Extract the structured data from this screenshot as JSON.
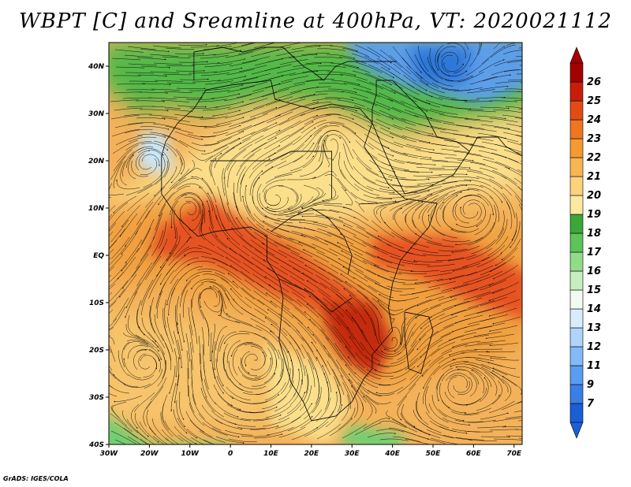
{
  "title": "WBPT [C] and Sreamline at 400hPa, VT: 2020021112",
  "credit": "GrADS: IGES/COLA",
  "map": {
    "lon_range": [
      -30,
      72
    ],
    "lat_range": [
      -40,
      45
    ],
    "lon_ticks": [
      {
        "lon": -30,
        "label": "30W"
      },
      {
        "lon": -20,
        "label": "20W"
      },
      {
        "lon": -10,
        "label": "10W"
      },
      {
        "lon": 0,
        "label": "0"
      },
      {
        "lon": 10,
        "label": "10E"
      },
      {
        "lon": 20,
        "label": "20E"
      },
      {
        "lon": 30,
        "label": "30E"
      },
      {
        "lon": 40,
        "label": "40E"
      },
      {
        "lon": 50,
        "label": "50E"
      },
      {
        "lon": 60,
        "label": "60E"
      },
      {
        "lon": 70,
        "label": "70E"
      }
    ],
    "lat_ticks": [
      {
        "lat": 40,
        "label": "40N"
      },
      {
        "lat": 30,
        "label": "30N"
      },
      {
        "lat": 20,
        "label": "20N"
      },
      {
        "lat": 10,
        "label": "10N"
      },
      {
        "lat": 0,
        "label": "EQ"
      },
      {
        "lat": -10,
        "label": "10S"
      },
      {
        "lat": -20,
        "label": "20S"
      },
      {
        "lat": -30,
        "label": "30S"
      },
      {
        "lat": -40,
        "label": "40S"
      }
    ]
  },
  "colorbar": {
    "levels": [
      "7",
      "9",
      "11",
      "12",
      "13",
      "14",
      "15",
      "16",
      "17",
      "18",
      "19",
      "20",
      "21",
      "22",
      "23",
      "24",
      "25",
      "26"
    ],
    "colors": [
      "#1a5fd6",
      "#3a7fe6",
      "#5a9cf2",
      "#84baf8",
      "#aed4fb",
      "#d8ecfc",
      "#f2fbf2",
      "#c8eec0",
      "#92dc88",
      "#5cc458",
      "#3aa838",
      "#fbe9a0",
      "#fcd27c",
      "#f8b650",
      "#f49a30",
      "#ee7620",
      "#e04c14",
      "#c81e08",
      "#a40000"
    ]
  },
  "wbpt_regions": [
    {
      "name": "north-green-band",
      "value": 17,
      "color": "#52b94a"
    },
    {
      "name": "north-east-cold-pool",
      "value": 13,
      "color": "#5d9ee8"
    },
    {
      "name": "north-west-cold-core",
      "value": 15,
      "color": "#c9e6f6"
    },
    {
      "name": "subtropical-yellow-belt",
      "value": 20,
      "color": "#fbdf8a"
    },
    {
      "name": "tropical-orange-belt",
      "value": 22,
      "color": "#f0a040"
    },
    {
      "name": "equatorial-red-core",
      "value": 24,
      "color": "#e65220"
    },
    {
      "name": "south-east-africa-max",
      "value": 25,
      "color": "#c42c10"
    },
    {
      "name": "southern-ocean-green",
      "value": 17,
      "color": "#6fcf72"
    }
  ],
  "streamline_centers": [
    {
      "name": "sw-atlantic-gyre",
      "lon": -20,
      "lat": -23
    },
    {
      "name": "south-atlantic-gyre-2",
      "lon": 6,
      "lat": -22
    },
    {
      "name": "mozambique-gyre",
      "lon": 40,
      "lat": -19
    },
    {
      "name": "madagascar-gyre",
      "lon": 56,
      "lat": -27
    },
    {
      "name": "sahara-gyre",
      "lon": 10,
      "lat": 12
    },
    {
      "name": "west-africa-gyre",
      "lon": -10,
      "lat": 10
    },
    {
      "name": "arabia-gyre",
      "lon": 25,
      "lat": 25
    },
    {
      "name": "east-europe-low",
      "lon": 54,
      "lat": 40
    },
    {
      "name": "nw-africa-low",
      "lon": -20,
      "lat": 20
    },
    {
      "name": "angola-gyre",
      "lon": -5,
      "lat": -8
    },
    {
      "name": "indian-ocean-gyre",
      "lon": 60,
      "lat": 10
    }
  ]
}
